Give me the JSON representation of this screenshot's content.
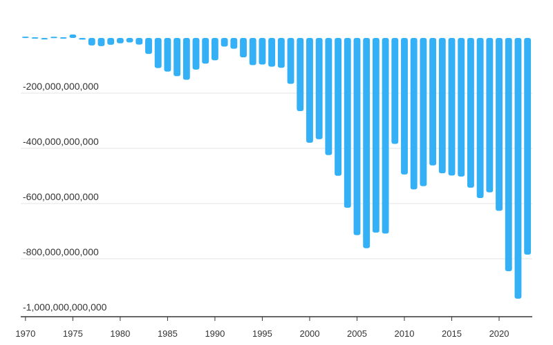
{
  "chart_data": {
    "type": "bar",
    "title": "",
    "xlabel": "",
    "ylabel": "",
    "bar_color": "#33b0f6",
    "grid": true,
    "legend": "none",
    "ylim": [
      -1000000000000,
      0
    ],
    "y_ticks": [
      {
        "value": -200000000000,
        "label": "-200,000,000,000"
      },
      {
        "value": -400000000000,
        "label": "-400,000,000,000"
      },
      {
        "value": -600000000000,
        "label": "-600,000,000,000"
      },
      {
        "value": -800000000000,
        "label": "-800,000,000,000"
      },
      {
        "value": -1000000000000,
        "label": "-1,000,000,000,000"
      }
    ],
    "x_ticks": [
      {
        "value": 1970,
        "label": "1970"
      },
      {
        "value": 1975,
        "label": "1975"
      },
      {
        "value": 1980,
        "label": "1980"
      },
      {
        "value": 1985,
        "label": "1985"
      },
      {
        "value": 1990,
        "label": "1990"
      },
      {
        "value": 1995,
        "label": "1995"
      },
      {
        "value": 2000,
        "label": "2000"
      },
      {
        "value": 2005,
        "label": "2005"
      },
      {
        "value": 2010,
        "label": "2010"
      },
      {
        "value": 2015,
        "label": "2015"
      },
      {
        "value": 2020,
        "label": "2020"
      }
    ],
    "categories": [
      1970,
      1971,
      1972,
      1973,
      1974,
      1975,
      1976,
      1977,
      1978,
      1979,
      1980,
      1981,
      1982,
      1983,
      1984,
      1985,
      1986,
      1987,
      1988,
      1989,
      1990,
      1991,
      1992,
      1993,
      1994,
      1995,
      1996,
      1997,
      1998,
      1999,
      2000,
      2001,
      2002,
      2003,
      2004,
      2005,
      2006,
      2007,
      2008,
      2009,
      2010,
      2011,
      2012,
      2013,
      2014,
      2015,
      2016,
      2017,
      2018,
      2019,
      2020,
      2021,
      2022,
      2023
    ],
    "values": [
      2254000000,
      -1302000000,
      -5443000000,
      1900000000,
      -4293000000,
      12404000000,
      -6082000000,
      -27246000000,
      -29763000000,
      -24565000000,
      -19407000000,
      -16172000000,
      -24156000000,
      -57767000000,
      -109072000000,
      -121880000000,
      -138538000000,
      -151684000000,
      -114566000000,
      -93141000000,
      -80864000000,
      -31135000000,
      -39212000000,
      -70311000000,
      -98493000000,
      -96384000000,
      -104065000000,
      -108273000000,
      -166140000000,
      -265090000000,
      -379835000000,
      -367000000000,
      -424370000000,
      -499380000000,
      -615390000000,
      -714250000000,
      -761720000000,
      -705380000000,
      -708730000000,
      -383770000000,
      -494660000000,
      -548630000000,
      -536770000000,
      -461880000000,
      -490340000000,
      -498520000000,
      -502270000000,
      -542440000000,
      -579940000000,
      -559380000000,
      -626190000000,
      -845050000000,
      -944780000000,
      -784940000000
    ]
  }
}
